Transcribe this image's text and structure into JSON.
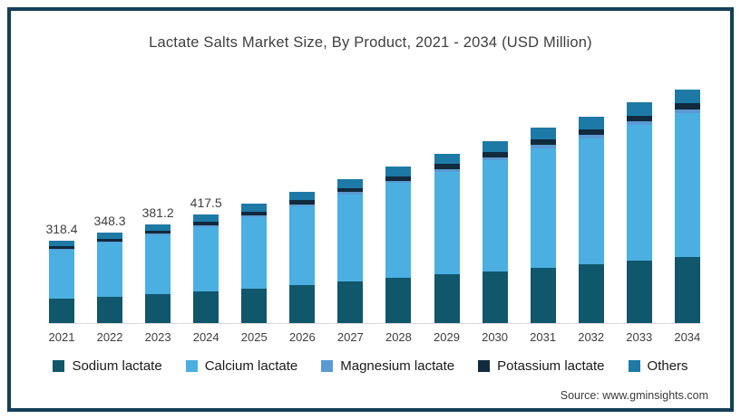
{
  "title": "Lactate Salts Market Size, By Product, 2021 - 2034 (USD Million)",
  "source": "Source: www.gminsights.com",
  "colors": {
    "frame": "#133f58",
    "axis_line": "#d9d9d9",
    "title_text": "#3f3f3f",
    "axis_text": "#3f3f3f",
    "legend_text": "#1a1a1a"
  },
  "chart_data": {
    "type": "bar",
    "stacked": true,
    "title": "Lactate Salts Market Size, By Product, 2021 - 2034 (USD Million)",
    "xlabel": "",
    "ylabel": "USD Million",
    "ylim": [
      0,
      940
    ],
    "grid": false,
    "legend_position": "bottom",
    "categories": [
      "2021",
      "2022",
      "2023",
      "2024",
      "2025",
      "2026",
      "2027",
      "2028",
      "2029",
      "2030",
      "2031",
      "2032",
      "2033",
      "2034"
    ],
    "totals": [
      318.4,
      348.3,
      381.2,
      417.5,
      460,
      505,
      553,
      602,
      651,
      700,
      752,
      793,
      849,
      898
    ],
    "data_labels": [
      "318.4",
      "348.3",
      "381.2",
      "417.5",
      "",
      "",
      "",
      "",
      "",
      "",
      "",
      "",
      "",
      ""
    ],
    "series": [
      {
        "name": "Sodium lactate",
        "color": "#10576b",
        "values": [
          94.0,
          102.0,
          111.0,
          121.0,
          133,
          146,
          160,
          173,
          187,
          200,
          214,
          227,
          241,
          255
        ]
      },
      {
        "name": "Calcium lactate",
        "color": "#4bafe2",
        "values": [
          187.4,
          206.3,
          226.7,
          249.0,
          276,
          304,
          334,
          365,
          395,
          426,
          459,
          484,
          520,
          551
        ]
      },
      {
        "name": "Magnesium lactate",
        "color": "#5b9ad2",
        "values": [
          5.0,
          5.5,
          6.0,
          6.5,
          7,
          8,
          9,
          10,
          11,
          12,
          13,
          14,
          15,
          16
        ]
      },
      {
        "name": "Potassium lactate",
        "color": "#112a3d",
        "values": [
          10.0,
          11.0,
          12.0,
          13.0,
          14,
          15,
          16,
          17,
          18,
          19,
          20,
          21,
          22,
          23
        ]
      },
      {
        "name": "Others",
        "color": "#1d7aa6",
        "values": [
          22.0,
          23.5,
          25.5,
          28.0,
          30,
          32,
          34,
          37,
          40,
          43,
          46,
          47,
          51,
          53
        ]
      }
    ]
  }
}
